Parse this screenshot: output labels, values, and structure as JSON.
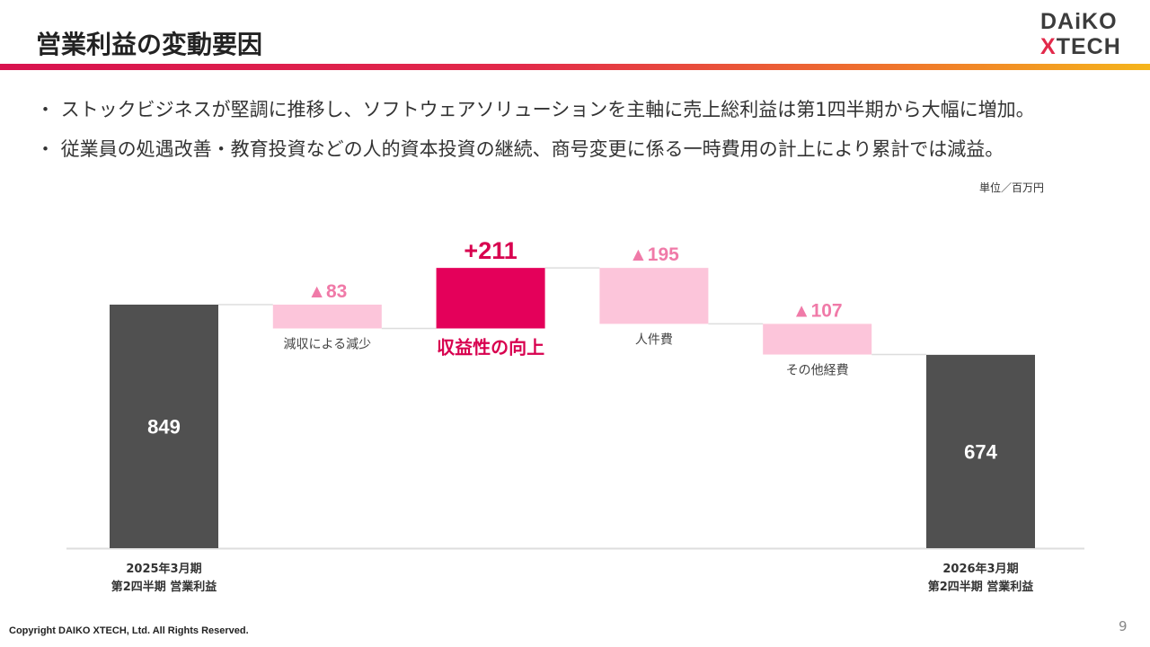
{
  "header": {
    "title": "営業利益の変動要因",
    "logo": {
      "line1": "DAiKO",
      "line2": "XTECH"
    }
  },
  "bullets": [
    "・ ストックビジネスが堅調に推移し、ソフトウェアソリューションを主軸に売上総利益は第1四半期から大幅に増加。",
    "・ 従業員の処遇改善・教育投資などの人的資本投資の継続、商号変更に係る一時費用の計上により累計では減益。"
  ],
  "unit_label": "単位／百万円",
  "chart_data": {
    "type": "waterfall",
    "categories": [
      "2025年3月期 第2四半期 営業利益",
      "減収による減少",
      "収益性の向上",
      "人件費",
      "その他経費",
      "2026年3月期 第2四半期 営業利益"
    ],
    "values": [
      849,
      -83,
      211,
      -195,
      -107,
      674
    ],
    "kinds": [
      "total",
      "delta",
      "delta",
      "delta",
      "delta",
      "total"
    ],
    "value_labels": [
      "849",
      "▲83",
      "+211",
      "▲195",
      "▲107",
      "674"
    ],
    "category_labels": [
      "",
      "減収による減少",
      "収益性の向上",
      "人件費",
      "その他経費",
      ""
    ],
    "axis_labels": [
      [
        "2025年3月期",
        "第2四半期  営業利益"
      ],
      [
        "2026年3月期",
        "第2四半期  営業利益"
      ]
    ],
    "ylim": [
      0,
      1000
    ],
    "colors": {
      "total": "#505050",
      "decrease": "#fcc5da",
      "increase": "#e4005a",
      "decrease_text": "#f07aa8",
      "increase_text": "#d8004f"
    }
  },
  "footer": {
    "copyright": "Copyright DAIKO XTECH, Ltd. All Rights Reserved.",
    "page": "9"
  }
}
